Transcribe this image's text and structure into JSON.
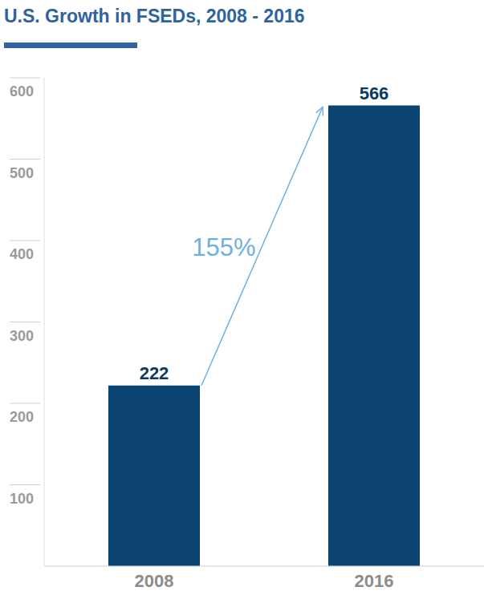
{
  "chart_data": {
    "type": "bar",
    "title": "U.S. Growth in FSEDs, 2008 - 2016",
    "categories": [
      "2008",
      "2016"
    ],
    "values": [
      222,
      566
    ],
    "color": "#0b4470",
    "ylim": [
      0,
      600
    ],
    "yticks": [
      100,
      200,
      300,
      400,
      500,
      600
    ],
    "grid": false,
    "data_labels": true,
    "annotations": [
      {
        "text": "155%"
      }
    ]
  }
}
